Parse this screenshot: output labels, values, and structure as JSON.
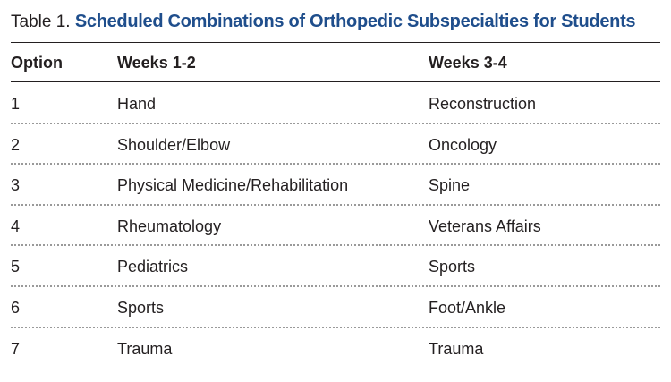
{
  "caption": {
    "label": "Table 1.",
    "title": "Scheduled Combinations of Orthopedic Subspecialties for Students"
  },
  "table": {
    "headers": [
      "Option",
      "Weeks 1-2",
      "Weeks 3-4"
    ],
    "rows": [
      [
        "1",
        "Hand",
        "Reconstruction"
      ],
      [
        "2",
        "Shoulder/Elbow",
        "Oncology"
      ],
      [
        "3",
        "Physical Medicine/Rehabilitation",
        "Spine"
      ],
      [
        "4",
        "Rheumatology",
        "Veterans Affairs"
      ],
      [
        "5",
        "Pediatrics",
        "Sports"
      ],
      [
        "6",
        "Sports",
        "Foot/Ankle"
      ],
      [
        "7",
        "Trauma",
        "Trauma"
      ]
    ]
  },
  "colors": {
    "title": "#1f4e8c",
    "text": "#231f20",
    "dotted_rule": "#9a9a9a"
  }
}
